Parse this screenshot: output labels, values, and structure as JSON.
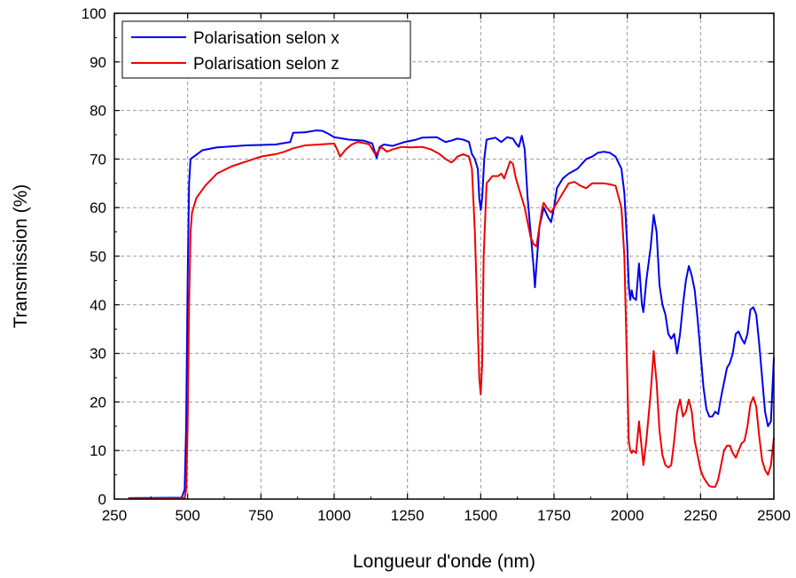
{
  "chart_data": {
    "type": "line",
    "xlabel": "Longueur d'onde (nm)",
    "ylabel": "Transmission (%)",
    "xlim": [
      250,
      2500
    ],
    "ylim": [
      0,
      100
    ],
    "xticks": [
      250,
      500,
      750,
      1000,
      1250,
      1500,
      1750,
      2000,
      2250,
      2500
    ],
    "yticks": [
      0,
      10,
      20,
      30,
      40,
      50,
      60,
      70,
      80,
      90,
      100
    ],
    "grid": true,
    "legend_position": "top-left",
    "series": [
      {
        "name": "Polarisation selon x",
        "color": "#0000ee",
        "points": [
          [
            300,
            0.2
          ],
          [
            480,
            0.3
          ],
          [
            490,
            2
          ],
          [
            495,
            15
          ],
          [
            500,
            45
          ],
          [
            505,
            65
          ],
          [
            510,
            70
          ],
          [
            550,
            71.8
          ],
          [
            600,
            72.4
          ],
          [
            700,
            72.8
          ],
          [
            800,
            73
          ],
          [
            850,
            73.5
          ],
          [
            860,
            75.4
          ],
          [
            900,
            75.5
          ],
          [
            940,
            75.9
          ],
          [
            960,
            75.8
          ],
          [
            980,
            75.2
          ],
          [
            1000,
            74.5
          ],
          [
            1050,
            74
          ],
          [
            1100,
            73.8
          ],
          [
            1130,
            73.2
          ],
          [
            1145,
            70.2
          ],
          [
            1155,
            72.5
          ],
          [
            1170,
            73
          ],
          [
            1200,
            72.7
          ],
          [
            1240,
            73.5
          ],
          [
            1280,
            74
          ],
          [
            1300,
            74.4
          ],
          [
            1350,
            74.5
          ],
          [
            1380,
            73.5
          ],
          [
            1400,
            73.8
          ],
          [
            1420,
            74.2
          ],
          [
            1440,
            74
          ],
          [
            1460,
            73.5
          ],
          [
            1470,
            71
          ],
          [
            1480,
            70
          ],
          [
            1490,
            68
          ],
          [
            1495,
            62
          ],
          [
            1500,
            59.5
          ],
          [
            1505,
            62
          ],
          [
            1512,
            70
          ],
          [
            1520,
            74
          ],
          [
            1550,
            74.4
          ],
          [
            1570,
            73.5
          ],
          [
            1590,
            74.5
          ],
          [
            1610,
            74.2
          ],
          [
            1620,
            73.2
          ],
          [
            1630,
            72.5
          ],
          [
            1640,
            74.8
          ],
          [
            1650,
            72
          ],
          [
            1660,
            62
          ],
          [
            1670,
            55
          ],
          [
            1680,
            48
          ],
          [
            1685,
            43.6
          ],
          [
            1690,
            48
          ],
          [
            1700,
            56
          ],
          [
            1715,
            60
          ],
          [
            1730,
            58
          ],
          [
            1740,
            57
          ],
          [
            1750,
            60
          ],
          [
            1760,
            64
          ],
          [
            1780,
            66
          ],
          [
            1800,
            67
          ],
          [
            1830,
            68
          ],
          [
            1860,
            70
          ],
          [
            1880,
            70.5
          ],
          [
            1900,
            71.3
          ],
          [
            1920,
            71.5
          ],
          [
            1940,
            71.3
          ],
          [
            1960,
            70.5
          ],
          [
            1980,
            68
          ],
          [
            1990,
            63
          ],
          [
            2000,
            52
          ],
          [
            2005,
            44
          ],
          [
            2010,
            41
          ],
          [
            2015,
            43
          ],
          [
            2020,
            41.5
          ],
          [
            2030,
            41
          ],
          [
            2040,
            48.5
          ],
          [
            2050,
            40
          ],
          [
            2055,
            38.5
          ],
          [
            2065,
            45
          ],
          [
            2080,
            52
          ],
          [
            2090,
            58.5
          ],
          [
            2100,
            55
          ],
          [
            2110,
            44
          ],
          [
            2120,
            40
          ],
          [
            2130,
            38
          ],
          [
            2140,
            34
          ],
          [
            2150,
            33
          ],
          [
            2160,
            34
          ],
          [
            2170,
            30
          ],
          [
            2180,
            34
          ],
          [
            2190,
            40
          ],
          [
            2200,
            45
          ],
          [
            2210,
            48
          ],
          [
            2220,
            46
          ],
          [
            2230,
            43
          ],
          [
            2240,
            37
          ],
          [
            2250,
            30
          ],
          [
            2260,
            23
          ],
          [
            2270,
            18.5
          ],
          [
            2280,
            17
          ],
          [
            2290,
            17
          ],
          [
            2300,
            18
          ],
          [
            2310,
            17.5
          ],
          [
            2320,
            21
          ],
          [
            2330,
            24
          ],
          [
            2340,
            27
          ],
          [
            2350,
            28
          ],
          [
            2360,
            30
          ],
          [
            2370,
            34
          ],
          [
            2380,
            34.5
          ],
          [
            2390,
            33
          ],
          [
            2400,
            32
          ],
          [
            2410,
            34
          ],
          [
            2420,
            39
          ],
          [
            2430,
            39.5
          ],
          [
            2440,
            38
          ],
          [
            2450,
            32
          ],
          [
            2460,
            25
          ],
          [
            2470,
            18
          ],
          [
            2480,
            15
          ],
          [
            2490,
            16
          ],
          [
            2500,
            29
          ]
        ]
      },
      {
        "name": "Polarisation selon z",
        "color": "#ee0000",
        "points": [
          [
            300,
            0.1
          ],
          [
            490,
            0.2
          ],
          [
            495,
            2
          ],
          [
            500,
            15
          ],
          [
            505,
            40
          ],
          [
            510,
            55
          ],
          [
            515,
            59
          ],
          [
            530,
            62
          ],
          [
            560,
            64.5
          ],
          [
            600,
            67
          ],
          [
            650,
            68.5
          ],
          [
            700,
            69.5
          ],
          [
            750,
            70.5
          ],
          [
            800,
            71
          ],
          [
            830,
            71.5
          ],
          [
            860,
            72.2
          ],
          [
            900,
            72.8
          ],
          [
            950,
            73
          ],
          [
            1000,
            73.2
          ],
          [
            1010,
            72
          ],
          [
            1020,
            70.5
          ],
          [
            1040,
            72
          ],
          [
            1060,
            73
          ],
          [
            1080,
            73.5
          ],
          [
            1100,
            73.3
          ],
          [
            1120,
            73
          ],
          [
            1140,
            71
          ],
          [
            1150,
            71.5
          ],
          [
            1160,
            72.5
          ],
          [
            1180,
            71.5
          ],
          [
            1200,
            72
          ],
          [
            1230,
            72.5
          ],
          [
            1260,
            72.4
          ],
          [
            1300,
            72.5
          ],
          [
            1330,
            72
          ],
          [
            1360,
            71
          ],
          [
            1380,
            70
          ],
          [
            1400,
            69.3
          ],
          [
            1410,
            69.8
          ],
          [
            1420,
            70.5
          ],
          [
            1440,
            71
          ],
          [
            1460,
            70.5
          ],
          [
            1470,
            68
          ],
          [
            1480,
            55
          ],
          [
            1490,
            35
          ],
          [
            1495,
            25
          ],
          [
            1500,
            21.5
          ],
          [
            1505,
            28
          ],
          [
            1510,
            50
          ],
          [
            1520,
            65
          ],
          [
            1540,
            66.5
          ],
          [
            1560,
            66.5
          ],
          [
            1570,
            67
          ],
          [
            1580,
            66
          ],
          [
            1600,
            69.5
          ],
          [
            1610,
            69
          ],
          [
            1620,
            66
          ],
          [
            1640,
            62
          ],
          [
            1650,
            60
          ],
          [
            1660,
            57
          ],
          [
            1670,
            54
          ],
          [
            1680,
            52.5
          ],
          [
            1690,
            52
          ],
          [
            1700,
            56
          ],
          [
            1710,
            60
          ],
          [
            1715,
            61
          ],
          [
            1725,
            60
          ],
          [
            1740,
            59
          ],
          [
            1760,
            61
          ],
          [
            1780,
            63
          ],
          [
            1800,
            65
          ],
          [
            1820,
            65.3
          ],
          [
            1840,
            64.5
          ],
          [
            1860,
            64
          ],
          [
            1880,
            65
          ],
          [
            1900,
            65
          ],
          [
            1920,
            65
          ],
          [
            1940,
            64.8
          ],
          [
            1960,
            64.5
          ],
          [
            1980,
            60
          ],
          [
            1990,
            50
          ],
          [
            2000,
            25
          ],
          [
            2005,
            12
          ],
          [
            2010,
            10
          ],
          [
            2015,
            9.5
          ],
          [
            2020,
            10
          ],
          [
            2030,
            9.5
          ],
          [
            2040,
            16
          ],
          [
            2050,
            10
          ],
          [
            2055,
            7
          ],
          [
            2065,
            12
          ],
          [
            2080,
            22
          ],
          [
            2090,
            30.5
          ],
          [
            2100,
            24
          ],
          [
            2110,
            14
          ],
          [
            2120,
            9
          ],
          [
            2130,
            7
          ],
          [
            2140,
            6.5
          ],
          [
            2150,
            7
          ],
          [
            2160,
            12
          ],
          [
            2170,
            18
          ],
          [
            2180,
            20.5
          ],
          [
            2190,
            17
          ],
          [
            2200,
            18
          ],
          [
            2210,
            20.5
          ],
          [
            2220,
            18
          ],
          [
            2230,
            12
          ],
          [
            2240,
            9
          ],
          [
            2250,
            6
          ],
          [
            2260,
            4.5
          ],
          [
            2270,
            3.5
          ],
          [
            2280,
            2.7
          ],
          [
            2290,
            2.5
          ],
          [
            2300,
            2.5
          ],
          [
            2310,
            4
          ],
          [
            2320,
            7
          ],
          [
            2330,
            10
          ],
          [
            2340,
            11
          ],
          [
            2350,
            11
          ],
          [
            2360,
            9.5
          ],
          [
            2370,
            8.5
          ],
          [
            2380,
            10
          ],
          [
            2390,
            11.5
          ],
          [
            2400,
            12
          ],
          [
            2410,
            15
          ],
          [
            2420,
            19.5
          ],
          [
            2430,
            21
          ],
          [
            2440,
            19
          ],
          [
            2450,
            13
          ],
          [
            2460,
            8
          ],
          [
            2470,
            6
          ],
          [
            2480,
            5
          ],
          [
            2490,
            7
          ],
          [
            2500,
            12.5
          ]
        ]
      }
    ]
  }
}
